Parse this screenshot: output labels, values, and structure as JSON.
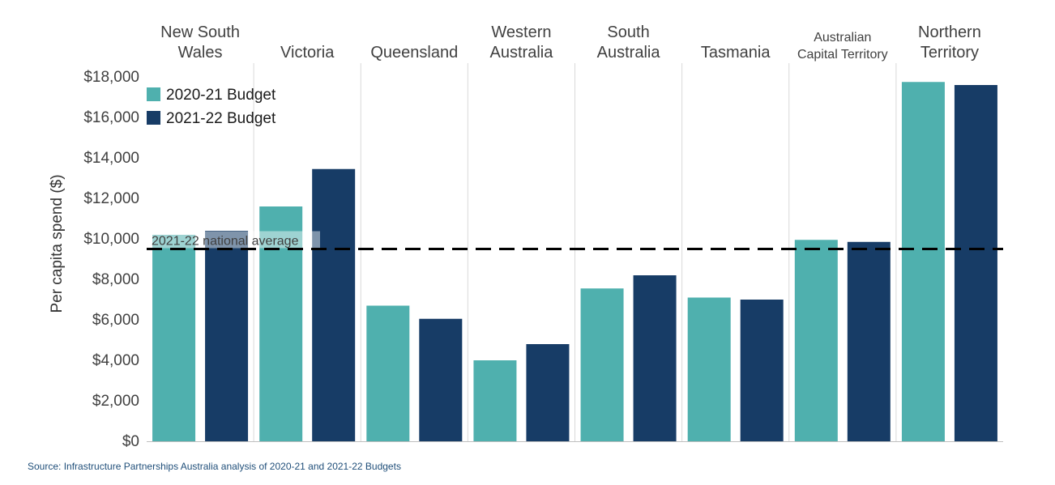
{
  "chart_data": {
    "type": "bar",
    "categories": [
      [
        "New South",
        "Wales"
      ],
      [
        "Victoria"
      ],
      [
        "Queensland"
      ],
      [
        "Western",
        "Australia"
      ],
      [
        "South",
        "Australia"
      ],
      [
        "Tasmania"
      ],
      [
        "Australian",
        "Capital Territory"
      ],
      [
        "Northern",
        "Territory"
      ]
    ],
    "series": [
      {
        "name": "2020-21 Budget",
        "color": "#4fb0ae",
        "values": [
          10200,
          11600,
          6700,
          4000,
          7550,
          7100,
          9950,
          17750
        ]
      },
      {
        "name": "2021-22 Budget",
        "color": "#173c66",
        "values": [
          10400,
          13450,
          6050,
          4800,
          8200,
          7000,
          9850,
          17600
        ]
      }
    ],
    "ylabel": "Per capita spend ($)",
    "ylim": [
      0,
      18000
    ],
    "yticks": [
      0,
      2000,
      4000,
      6000,
      8000,
      10000,
      12000,
      14000,
      16000,
      18000
    ],
    "ytick_labels": [
      "$0",
      "$2,000",
      "$4,000",
      "$6,000",
      "$8,000",
      "$10,000",
      "$12,000",
      "$14,000",
      "$16,000",
      "$18,000"
    ],
    "reference_line": {
      "value": 9500,
      "label": "2021-22 national average"
    },
    "legend_position": "top-left",
    "category_label_position": "top",
    "grid": "vertical separators between categories"
  },
  "source": "Source: Infrastructure Partnerships Australia analysis of 2020-21 and 2021-22 Budgets"
}
